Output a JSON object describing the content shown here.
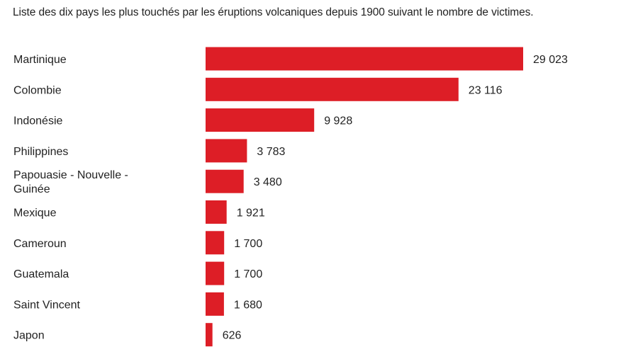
{
  "title": "Liste des dix pays les plus touchés par les éruptions volcaniques depuis 1900 suivant le nombre de victimes.",
  "bar_color": "#dd1e26",
  "chart_data": {
    "type": "bar",
    "orientation": "horizontal",
    "title": "Liste des dix pays les plus touchés par les éruptions volcaniques depuis 1900 suivant le nombre de victimes.",
    "categories": [
      [
        "Martinique"
      ],
      [
        "Colombie"
      ],
      [
        "Indonésie"
      ],
      [
        "Philippines"
      ],
      [
        "Papouasie - Nouvelle -",
        "Guinée"
      ],
      [
        "Mexique"
      ],
      [
        "Cameroun"
      ],
      [
        "Guatemala"
      ],
      [
        "Saint Vincent"
      ],
      [
        "Japon"
      ]
    ],
    "values": [
      29023,
      23116,
      9928,
      3783,
      3480,
      1921,
      1700,
      1700,
      1680,
      626
    ],
    "value_labels": [
      "29 023",
      "23 116",
      "9 928",
      "3 783",
      "3 480",
      "1 921",
      "1 700",
      "1 700",
      "1 680",
      "626"
    ],
    "xlim": [
      0,
      29023
    ],
    "grid": false,
    "legend": "none"
  }
}
